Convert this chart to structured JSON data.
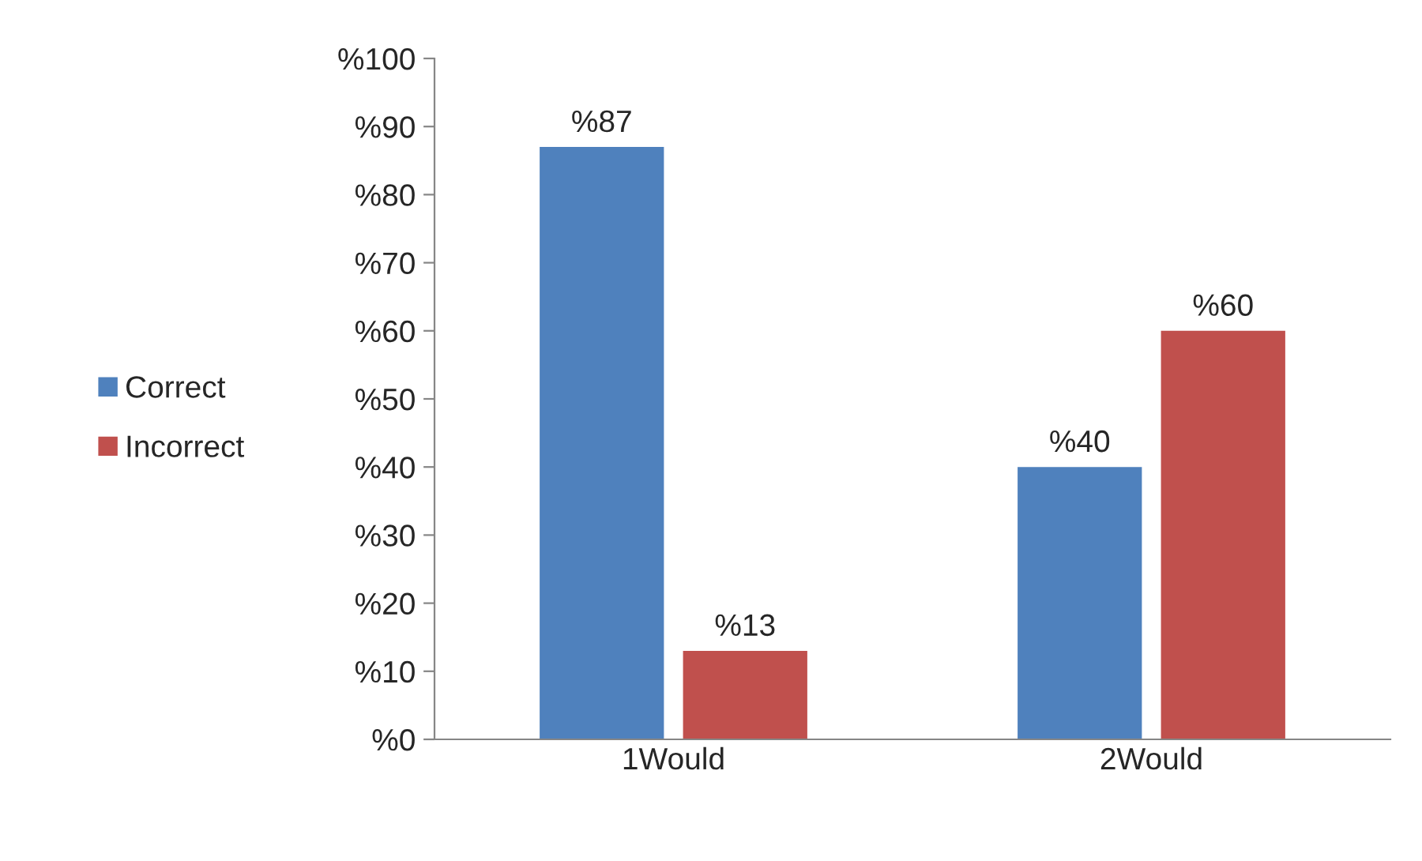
{
  "chart_data": {
    "type": "bar",
    "categories": [
      "1Would",
      "2Would"
    ],
    "series": [
      {
        "name": "Correct",
        "color": "#4f81bd",
        "values": [
          87,
          40
        ],
        "value_labels": [
          "%87",
          "%40"
        ]
      },
      {
        "name": "Incorrect",
        "color": "#c0504d",
        "values": [
          13,
          60
        ],
        "value_labels": [
          "%13",
          "%60"
        ]
      }
    ],
    "ylim": [
      0,
      100
    ],
    "yticks": [
      {
        "value": 0,
        "label": "%0"
      },
      {
        "value": 10,
        "label": "%10"
      },
      {
        "value": 20,
        "label": "%20"
      },
      {
        "value": 30,
        "label": "%30"
      },
      {
        "value": 40,
        "label": "%40"
      },
      {
        "value": 50,
        "label": "%50"
      },
      {
        "value": 60,
        "label": "%60"
      },
      {
        "value": 70,
        "label": "%70"
      },
      {
        "value": 80,
        "label": "%80"
      },
      {
        "value": 90,
        "label": "%90"
      },
      {
        "value": 100,
        "label": "%100"
      }
    ],
    "grid": false,
    "legend": "left"
  }
}
